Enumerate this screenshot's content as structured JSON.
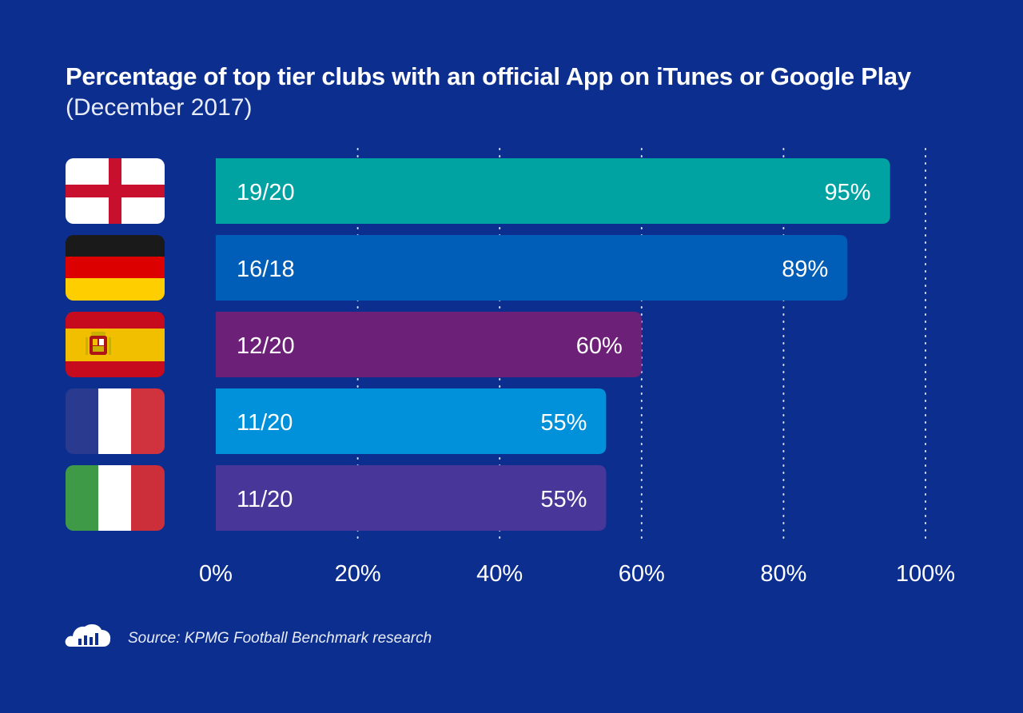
{
  "title": "Percentage of top tier clubs with an official App on iTunes or Google Play",
  "subtitle": "(December 2017)",
  "source": "Source: KPMG Football Benchmark research",
  "icons": {
    "source": "cloud-bar-chart-icon"
  },
  "colors": {
    "background": "#0c2f8f",
    "england": "#00a3a1",
    "germany": "#005eb8",
    "spain": "#6d2077",
    "france": "#0091da",
    "italy": "#483698"
  },
  "chart_data": {
    "type": "bar",
    "orientation": "horizontal",
    "categories": [
      "England",
      "Germany",
      "Spain",
      "France",
      "Italy"
    ],
    "flags": [
      "england-flag-icon",
      "germany-flag-icon",
      "spain-flag-icon",
      "france-flag-icon",
      "italy-flag-icon"
    ],
    "values": [
      95,
      89,
      60,
      55,
      55
    ],
    "value_labels": [
      "95%",
      "89%",
      "60%",
      "55%",
      "55%"
    ],
    "count_labels": [
      "19/20",
      "16/18",
      "12/20",
      "11/20",
      "11/20"
    ],
    "xlim": [
      0,
      100
    ],
    "xticks": [
      0,
      20,
      40,
      60,
      80,
      100
    ],
    "xtick_labels": [
      "0%",
      "20%",
      "40%",
      "60%",
      "80%",
      "100%"
    ],
    "grid": "vertical dotted",
    "legend": "none"
  }
}
